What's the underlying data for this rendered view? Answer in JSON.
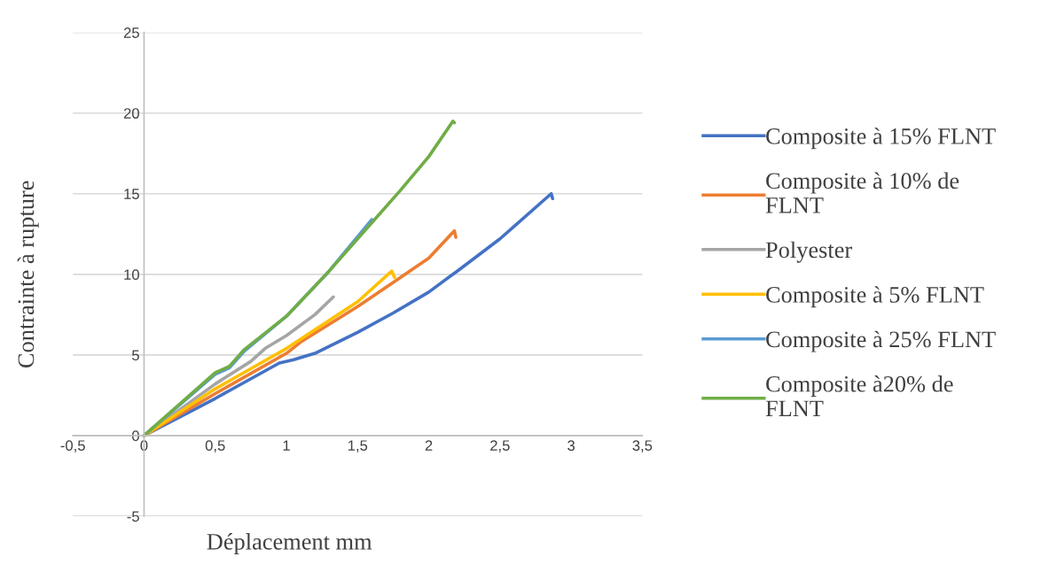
{
  "chart_data": {
    "type": "line",
    "xlabel": "Déplacement mm",
    "ylabel": "Contrainte à rupture",
    "xlim": [
      -0.5,
      3.5
    ],
    "ylim": [
      -5,
      25
    ],
    "xticks": [
      {
        "value": -0.5,
        "label": "-0,5"
      },
      0,
      {
        "value": 0.5,
        "label": "0,5"
      },
      1,
      {
        "value": 1.5,
        "label": "1,5"
      },
      2,
      {
        "value": 2.5,
        "label": "2,5"
      },
      3,
      {
        "value": 3.5,
        "label": "3,5"
      }
    ],
    "yticks": [
      -5,
      0,
      5,
      10,
      15,
      20,
      25
    ],
    "grid": "y",
    "legend": "right",
    "marker": "none",
    "line_style": "solid",
    "series": [
      {
        "name": "Composite à 15% FLNT",
        "color": "#4472c4",
        "x": [
          0,
          0.5,
          0.95,
          1.05,
          1.2,
          1.5,
          1.75,
          2.0,
          2.2,
          2.5,
          2.86,
          2.87
        ],
        "values": [
          0,
          2.3,
          4.5,
          4.7,
          5.1,
          6.4,
          7.6,
          8.9,
          10.2,
          12.2,
          15.0,
          14.7
        ]
      },
      {
        "name": "Composite à 10% de FLNT",
        "color": "#ed7d31",
        "x": [
          0,
          0.5,
          1.0,
          1.1,
          1.5,
          1.75,
          2.0,
          2.18,
          2.19
        ],
        "values": [
          0,
          2.6,
          5.1,
          5.8,
          8.0,
          9.5,
          11.0,
          12.7,
          12.3
        ]
      },
      {
        "name": "Polyester",
        "color": "#a5a5a5",
        "x": [
          0,
          0.5,
          0.75,
          0.85,
          1.0,
          1.2,
          1.33
        ],
        "values": [
          0,
          3.2,
          4.6,
          5.4,
          6.2,
          7.5,
          8.6
        ]
      },
      {
        "name": "Composite à 5% FLNT",
        "color": "#ffc000",
        "x": [
          0,
          0.5,
          0.8,
          1.0,
          1.5,
          1.74,
          1.76
        ],
        "values": [
          0,
          2.9,
          4.4,
          5.4,
          8.3,
          10.2,
          9.8
        ]
      },
      {
        "name": "Composite à 25% FLNT",
        "color": "#5b9bd5",
        "x": [
          0,
          0.5,
          0.6,
          0.7,
          1.0,
          1.3,
          1.6
        ],
        "values": [
          0,
          3.8,
          4.2,
          5.2,
          7.4,
          10.2,
          13.4
        ]
      },
      {
        "name": "Composite à20% de FLNT",
        "color": "#70ad47",
        "x": [
          0,
          0.5,
          0.6,
          0.7,
          1.0,
          1.3,
          1.6,
          1.8,
          2.0,
          2.17,
          2.18
        ],
        "values": [
          0,
          3.9,
          4.3,
          5.3,
          7.4,
          10.2,
          13.2,
          15.2,
          17.3,
          19.5,
          19.4
        ]
      }
    ]
  }
}
